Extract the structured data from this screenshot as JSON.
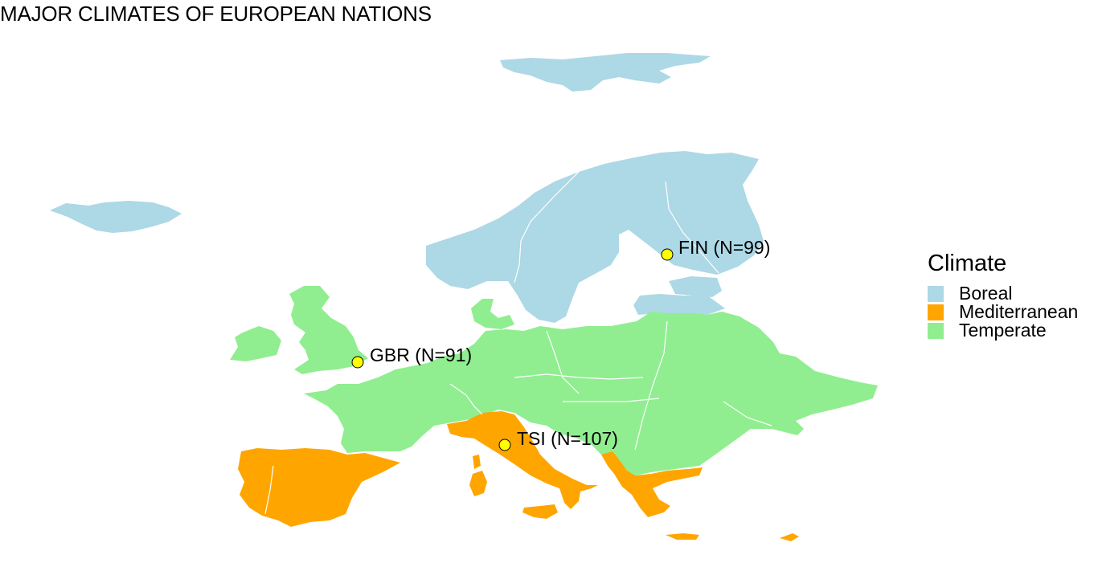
{
  "title": "MAJOR CLIMATES OF EUROPEAN NATIONS",
  "legend": {
    "title": "Climate",
    "items": [
      {
        "label": "Boreal",
        "color": "#add8e6"
      },
      {
        "label": "Mediterranean",
        "color": "#ffa500"
      },
      {
        "label": "Temperate",
        "color": "#90ee90"
      }
    ]
  },
  "markers": [
    {
      "label": "FIN (N=99)",
      "color": "#ffff00"
    },
    {
      "label": "GBR (N=91)",
      "color": "#ffff00"
    },
    {
      "label": "TSI (N=107)",
      "color": "#ffff00"
    }
  ]
}
